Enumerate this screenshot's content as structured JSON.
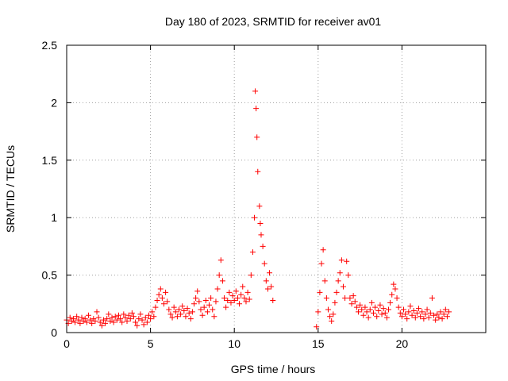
{
  "chart_data": {
    "type": "scatter",
    "title": "Day 180 of 2023, SRMTID for receiver av01",
    "xlabel": "GPS time / hours",
    "ylabel": "SRMTID / TECUs",
    "xlim": [
      0,
      25
    ],
    "ylim": [
      0,
      2.5
    ],
    "xticks": [
      0,
      5,
      10,
      15,
      20
    ],
    "yticks": [
      0,
      0.5,
      1,
      1.5,
      2,
      2.5
    ],
    "xtick_labels": [
      "0",
      "5",
      "10",
      "15",
      "20"
    ],
    "ytick_labels": [
      "0",
      "0.5",
      "1",
      "1.5",
      "2",
      "2.5"
    ],
    "grid": true,
    "marker": "+",
    "color": "#ff0000",
    "series": [
      {
        "name": "SRMTID",
        "points": [
          [
            0.0,
            0.11
          ],
          [
            0.1,
            0.08
          ],
          [
            0.2,
            0.13
          ],
          [
            0.3,
            0.1
          ],
          [
            0.4,
            0.12
          ],
          [
            0.5,
            0.09
          ],
          [
            0.6,
            0.14
          ],
          [
            0.7,
            0.11
          ],
          [
            0.8,
            0.08
          ],
          [
            0.9,
            0.13
          ],
          [
            1.0,
            0.1
          ],
          [
            1.1,
            0.12
          ],
          [
            1.2,
            0.09
          ],
          [
            1.3,
            0.15
          ],
          [
            1.4,
            0.11
          ],
          [
            1.5,
            0.08
          ],
          [
            1.6,
            0.12
          ],
          [
            1.7,
            0.1
          ],
          [
            1.8,
            0.18
          ],
          [
            1.9,
            0.13
          ],
          [
            2.0,
            0.09
          ],
          [
            2.1,
            0.06
          ],
          [
            2.2,
            0.11
          ],
          [
            2.3,
            0.08
          ],
          [
            2.4,
            0.12
          ],
          [
            2.5,
            0.16
          ],
          [
            2.6,
            0.1
          ],
          [
            2.7,
            0.13
          ],
          [
            2.8,
            0.09
          ],
          [
            2.9,
            0.14
          ],
          [
            3.0,
            0.11
          ],
          [
            3.1,
            0.15
          ],
          [
            3.2,
            0.12
          ],
          [
            3.3,
            0.09
          ],
          [
            3.4,
            0.16
          ],
          [
            3.5,
            0.13
          ],
          [
            3.6,
            0.1
          ],
          [
            3.7,
            0.15
          ],
          [
            3.8,
            0.12
          ],
          [
            3.9,
            0.17
          ],
          [
            4.0,
            0.14
          ],
          [
            4.1,
            0.09
          ],
          [
            4.2,
            0.06
          ],
          [
            4.3,
            0.12
          ],
          [
            4.4,
            0.16
          ],
          [
            4.5,
            0.11
          ],
          [
            4.6,
            0.07
          ],
          [
            4.7,
            0.13
          ],
          [
            4.8,
            0.09
          ],
          [
            4.9,
            0.15
          ],
          [
            5.0,
            0.12
          ],
          [
            5.1,
            0.18
          ],
          [
            5.2,
            0.14
          ],
          [
            5.3,
            0.22
          ],
          [
            5.4,
            0.28
          ],
          [
            5.5,
            0.33
          ],
          [
            5.6,
            0.38
          ],
          [
            5.7,
            0.3
          ],
          [
            5.8,
            0.25
          ],
          [
            5.9,
            0.35
          ],
          [
            6.0,
            0.27
          ],
          [
            6.1,
            0.2
          ],
          [
            6.2,
            0.16
          ],
          [
            6.3,
            0.13
          ],
          [
            6.4,
            0.22
          ],
          [
            6.5,
            0.18
          ],
          [
            6.6,
            0.14
          ],
          [
            6.7,
            0.2
          ],
          [
            6.8,
            0.16
          ],
          [
            6.9,
            0.23
          ],
          [
            7.0,
            0.19
          ],
          [
            7.1,
            0.14
          ],
          [
            7.2,
            0.21
          ],
          [
            7.3,
            0.17
          ],
          [
            7.4,
            0.12
          ],
          [
            7.5,
            0.18
          ],
          [
            7.6,
            0.25
          ],
          [
            7.7,
            0.3
          ],
          [
            7.8,
            0.36
          ],
          [
            7.9,
            0.27
          ],
          [
            8.0,
            0.2
          ],
          [
            8.1,
            0.15
          ],
          [
            8.2,
            0.22
          ],
          [
            8.3,
            0.28
          ],
          [
            8.4,
            0.18
          ],
          [
            8.5,
            0.24
          ],
          [
            8.6,
            0.3
          ],
          [
            8.7,
            0.2
          ],
          [
            8.8,
            0.14
          ],
          [
            8.9,
            0.27
          ],
          [
            9.0,
            0.38
          ],
          [
            9.1,
            0.5
          ],
          [
            9.2,
            0.63
          ],
          [
            9.3,
            0.45
          ],
          [
            9.4,
            0.3
          ],
          [
            9.5,
            0.22
          ],
          [
            9.6,
            0.28
          ],
          [
            9.7,
            0.35
          ],
          [
            9.8,
            0.26
          ],
          [
            9.9,
            0.32
          ],
          [
            10.0,
            0.28
          ],
          [
            10.1,
            0.36
          ],
          [
            10.2,
            0.3
          ],
          [
            10.3,
            0.25
          ],
          [
            10.4,
            0.33
          ],
          [
            10.5,
            0.4
          ],
          [
            10.6,
            0.3
          ],
          [
            10.7,
            0.27
          ],
          [
            10.8,
            0.35
          ],
          [
            10.9,
            0.29
          ],
          [
            11.0,
            0.5
          ],
          [
            11.1,
            0.7
          ],
          [
            11.2,
            1.0
          ],
          [
            11.25,
            2.1
          ],
          [
            11.3,
            1.95
          ],
          [
            11.35,
            1.7
          ],
          [
            11.4,
            1.4
          ],
          [
            11.5,
            1.1
          ],
          [
            11.55,
            0.95
          ],
          [
            11.6,
            0.85
          ],
          [
            11.7,
            0.75
          ],
          [
            11.8,
            0.6
          ],
          [
            11.9,
            0.45
          ],
          [
            12.0,
            0.38
          ],
          [
            12.1,
            0.52
          ],
          [
            12.2,
            0.4
          ],
          [
            12.3,
            0.28
          ],
          [
            14.9,
            0.05
          ],
          [
            15.0,
            0.18
          ],
          [
            15.1,
            0.35
          ],
          [
            15.2,
            0.6
          ],
          [
            15.3,
            0.72
          ],
          [
            15.4,
            0.45
          ],
          [
            15.5,
            0.3
          ],
          [
            15.6,
            0.2
          ],
          [
            15.7,
            0.14
          ],
          [
            15.8,
            0.1
          ],
          [
            15.9,
            0.16
          ],
          [
            16.0,
            0.26
          ],
          [
            16.1,
            0.35
          ],
          [
            16.2,
            0.45
          ],
          [
            16.3,
            0.52
          ],
          [
            16.4,
            0.63
          ],
          [
            16.5,
            0.4
          ],
          [
            16.6,
            0.3
          ],
          [
            16.7,
            0.62
          ],
          [
            16.8,
            0.5
          ],
          [
            16.9,
            0.3
          ],
          [
            17.0,
            0.25
          ],
          [
            17.1,
            0.32
          ],
          [
            17.2,
            0.27
          ],
          [
            17.3,
            0.22
          ],
          [
            17.4,
            0.18
          ],
          [
            17.5,
            0.24
          ],
          [
            17.6,
            0.2
          ],
          [
            17.7,
            0.15
          ],
          [
            17.8,
            0.22
          ],
          [
            17.9,
            0.18
          ],
          [
            18.0,
            0.13
          ],
          [
            18.1,
            0.2
          ],
          [
            18.2,
            0.26
          ],
          [
            18.3,
            0.17
          ],
          [
            18.4,
            0.22
          ],
          [
            18.5,
            0.14
          ],
          [
            18.6,
            0.19
          ],
          [
            18.7,
            0.24
          ],
          [
            18.8,
            0.16
          ],
          [
            18.9,
            0.21
          ],
          [
            19.0,
            0.17
          ],
          [
            19.1,
            0.13
          ],
          [
            19.2,
            0.2
          ],
          [
            19.3,
            0.26
          ],
          [
            19.4,
            0.33
          ],
          [
            19.5,
            0.42
          ],
          [
            19.6,
            0.38
          ],
          [
            19.7,
            0.3
          ],
          [
            19.8,
            0.22
          ],
          [
            19.9,
            0.17
          ],
          [
            20.0,
            0.14
          ],
          [
            20.1,
            0.2
          ],
          [
            20.2,
            0.16
          ],
          [
            20.3,
            0.12
          ],
          [
            20.4,
            0.18
          ],
          [
            20.5,
            0.23
          ],
          [
            20.6,
            0.15
          ],
          [
            20.7,
            0.19
          ],
          [
            20.8,
            0.13
          ],
          [
            20.9,
            0.17
          ],
          [
            21.0,
            0.21
          ],
          [
            21.1,
            0.14
          ],
          [
            21.2,
            0.18
          ],
          [
            21.3,
            0.12
          ],
          [
            21.4,
            0.16
          ],
          [
            21.5,
            0.2
          ],
          [
            21.6,
            0.13
          ],
          [
            21.7,
            0.17
          ],
          [
            21.8,
            0.3
          ],
          [
            21.9,
            0.15
          ],
          [
            22.0,
            0.11
          ],
          [
            22.1,
            0.16
          ],
          [
            22.2,
            0.13
          ],
          [
            22.3,
            0.18
          ],
          [
            22.4,
            0.12
          ],
          [
            22.5,
            0.16
          ],
          [
            22.6,
            0.2
          ],
          [
            22.7,
            0.14
          ],
          [
            22.8,
            0.18
          ]
        ]
      }
    ]
  }
}
